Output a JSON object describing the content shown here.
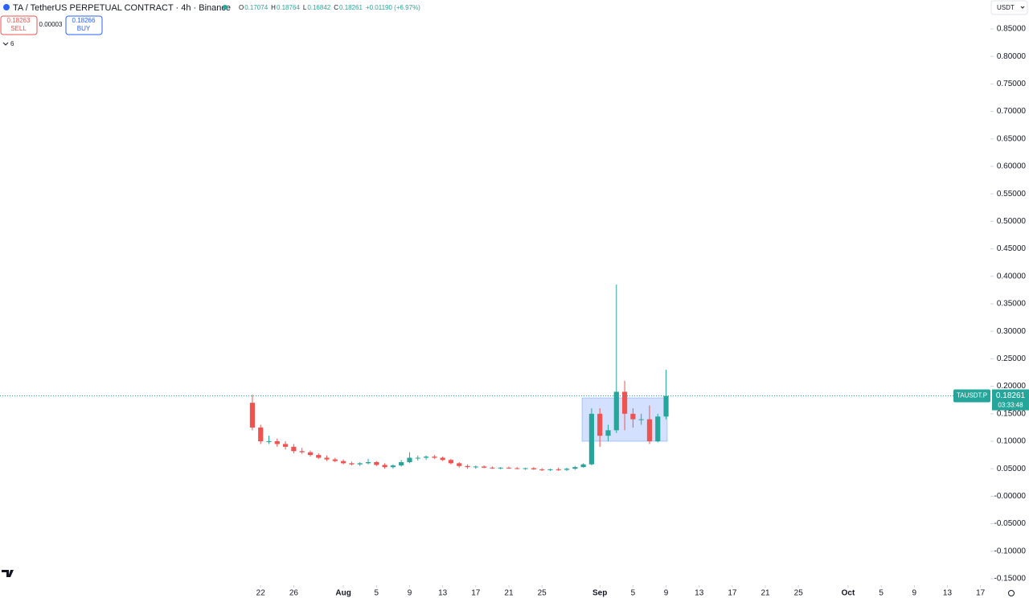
{
  "header": {
    "title": "TA / TetherUS PERPETUAL CONTRACT · 4h · Binance",
    "ohlc": [
      {
        "label": "O",
        "value": "0.17074"
      },
      {
        "label": "H",
        "value": "0.18764"
      },
      {
        "label": "L",
        "value": "0.16842"
      },
      {
        "label": "C",
        "value": "0.18261"
      }
    ],
    "change": "+0.01190 (+6.97%)"
  },
  "trade": {
    "sell_price": "0.18263",
    "sell": "SELL",
    "spread": "0.00003",
    "buy_price": "0.18266",
    "buy": "BUY",
    "indicators": "6"
  },
  "currency": "USDT",
  "chart_data": {
    "type": "candlestick",
    "x": [
      202,
      203,
      204,
      205,
      206,
      207,
      208,
      209,
      210,
      211,
      212,
      213,
      214,
      215,
      216,
      217,
      218,
      219,
      220,
      221,
      222,
      223,
      224,
      225,
      226,
      227,
      228,
      229,
      230,
      231,
      232,
      233,
      234,
      235,
      236,
      237,
      238,
      239,
      240,
      241,
      242,
      243,
      244,
      245,
      246,
      247,
      248,
      249,
      250,
      251,
      252
    ],
    "open": [
      0.17,
      0.125,
      0.1,
      0.1,
      0.095,
      0.09,
      0.082,
      0.08,
      0.075,
      0.07,
      0.067,
      0.064,
      0.06,
      0.058,
      0.06,
      0.062,
      0.057,
      0.053,
      0.056,
      0.062,
      0.07,
      0.07,
      0.072,
      0.07,
      0.066,
      0.06,
      0.055,
      0.053,
      0.054,
      0.052,
      0.051,
      0.052,
      0.051,
      0.05,
      0.051,
      0.049,
      0.048,
      0.049,
      0.048,
      0.05,
      0.053,
      0.058,
      0.15,
      0.11,
      0.12,
      0.19,
      0.15,
      0.14,
      0.14,
      0.1,
      0.145
    ],
    "high": [
      0.185,
      0.13,
      0.11,
      0.105,
      0.1,
      0.095,
      0.088,
      0.083,
      0.078,
      0.074,
      0.07,
      0.067,
      0.063,
      0.062,
      0.068,
      0.064,
      0.06,
      0.058,
      0.066,
      0.08,
      0.074,
      0.074,
      0.075,
      0.072,
      0.068,
      0.062,
      0.058,
      0.056,
      0.056,
      0.054,
      0.053,
      0.054,
      0.053,
      0.052,
      0.053,
      0.051,
      0.05,
      0.052,
      0.052,
      0.055,
      0.06,
      0.16,
      0.16,
      0.13,
      0.385,
      0.21,
      0.16,
      0.15,
      0.165,
      0.15,
      0.23
    ],
    "low": [
      0.12,
      0.095,
      0.095,
      0.09,
      0.085,
      0.078,
      0.077,
      0.072,
      0.068,
      0.064,
      0.062,
      0.058,
      0.056,
      0.055,
      0.058,
      0.055,
      0.05,
      0.05,
      0.054,
      0.06,
      0.065,
      0.066,
      0.068,
      0.064,
      0.058,
      0.052,
      0.05,
      0.05,
      0.051,
      0.05,
      0.049,
      0.05,
      0.049,
      0.048,
      0.048,
      0.046,
      0.046,
      0.046,
      0.046,
      0.048,
      0.052,
      0.056,
      0.09,
      0.1,
      0.115,
      0.12,
      0.125,
      0.13,
      0.095,
      0.098,
      0.14
    ],
    "close": [
      0.125,
      0.1,
      0.1,
      0.095,
      0.09,
      0.082,
      0.08,
      0.075,
      0.07,
      0.067,
      0.064,
      0.06,
      0.058,
      0.06,
      0.062,
      0.057,
      0.053,
      0.056,
      0.062,
      0.07,
      0.07,
      0.072,
      0.07,
      0.066,
      0.06,
      0.055,
      0.053,
      0.054,
      0.052,
      0.051,
      0.052,
      0.051,
      0.05,
      0.051,
      0.049,
      0.048,
      0.049,
      0.048,
      0.05,
      0.053,
      0.058,
      0.15,
      0.11,
      0.12,
      0.19,
      0.15,
      0.14,
      0.14,
      0.1,
      0.145,
      0.18261
    ],
    "up_color": "#26a69a",
    "down_color": "#ef5350",
    "xlim": [
      171.5,
      291.2
    ],
    "ylim": [
      -0.15,
      0.85
    ],
    "xticks": [
      {
        "value": 203,
        "label": "22"
      },
      {
        "value": 207,
        "label": "26"
      },
      {
        "value": 213,
        "label": "Aug"
      },
      {
        "value": 217,
        "label": "5"
      },
      {
        "value": 221,
        "label": "9"
      },
      {
        "value": 225,
        "label": "13"
      },
      {
        "value": 229,
        "label": "17"
      },
      {
        "value": 233,
        "label": "21"
      },
      {
        "value": 237,
        "label": "25"
      },
      {
        "value": 244,
        "label": "Sep"
      },
      {
        "value": 248,
        "label": "5"
      },
      {
        "value": 252,
        "label": "9"
      },
      {
        "value": 256,
        "label": "13"
      },
      {
        "value": 260,
        "label": "17"
      },
      {
        "value": 264,
        "label": "21"
      },
      {
        "value": 268,
        "label": "25"
      },
      {
        "value": 274,
        "label": "Oct"
      },
      {
        "value": 278,
        "label": "5"
      },
      {
        "value": 282,
        "label": "9"
      },
      {
        "value": 286,
        "label": "13"
      },
      {
        "value": 290,
        "label": "17"
      }
    ],
    "yticks": [
      {
        "value": 0.85,
        "label": "0.85000"
      },
      {
        "value": 0.8,
        "label": "0.80000"
      },
      {
        "value": 0.75,
        "label": "0.75000"
      },
      {
        "value": 0.7,
        "label": "0.70000"
      },
      {
        "value": 0.65,
        "label": "0.65000"
      },
      {
        "value": 0.6,
        "label": "0.60000"
      },
      {
        "value": 0.55,
        "label": "0.55000"
      },
      {
        "value": 0.5,
        "label": "0.50000"
      },
      {
        "value": 0.45,
        "label": "0.45000"
      },
      {
        "value": 0.4,
        "label": "0.40000"
      },
      {
        "value": 0.35,
        "label": "0.35000"
      },
      {
        "value": 0.3,
        "label": "0.30000"
      },
      {
        "value": 0.25,
        "label": "0.25000"
      },
      {
        "value": 0.2,
        "label": "0.20000"
      },
      {
        "value": 0.15,
        "label": "0.15000"
      },
      {
        "value": 0.1,
        "label": "0.10000"
      },
      {
        "value": 0.05,
        "label": "0.05000"
      },
      {
        "value": 0,
        "label": "-0.00000"
      },
      {
        "value": -0.05,
        "label": "-0.05000"
      },
      {
        "value": -0.1,
        "label": "-0.10000"
      },
      {
        "value": -0.15,
        "label": "-0.15000"
      }
    ],
    "last_price": {
      "symbol": "TAUSDT.P",
      "value": 0.18261,
      "countdown": "03:33:48"
    }
  }
}
